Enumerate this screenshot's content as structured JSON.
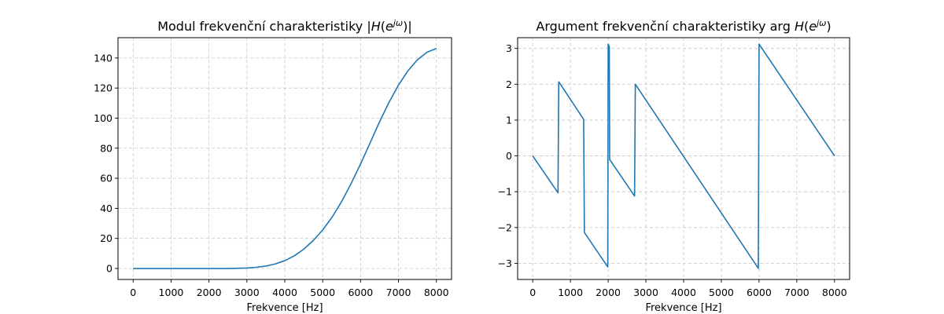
{
  "chart_data": [
    {
      "type": "line",
      "title": "Modul frekvenční charakteristiky |H(e^{jω})|",
      "title_parts": [
        "Modul frekvenční charakteristiky |",
        "H",
        "(",
        "e",
        "jω",
        ")|"
      ],
      "xlabel": "Frekvence [Hz]",
      "ylabel": "",
      "xlim": [
        -400,
        8400
      ],
      "ylim": [
        -7.3,
        153.5
      ],
      "xticks": [
        0,
        1000,
        2000,
        3000,
        4000,
        5000,
        6000,
        7000,
        8000
      ],
      "yticks": [
        0,
        20,
        40,
        60,
        80,
        100,
        120,
        140
      ],
      "grid": true,
      "color": "#1f77b4",
      "series": [
        {
          "x": [
            0,
            1000,
            2000,
            2500,
            3000,
            3250,
            3500,
            3750,
            4000,
            4250,
            4500,
            4750,
            5000,
            5250,
            5500,
            5750,
            6000,
            6250,
            6500,
            6750,
            7000,
            7250,
            7500,
            7750,
            8000
          ],
          "values": [
            0,
            0,
            0,
            0,
            0.3,
            0.8,
            1.6,
            3.0,
            5.2,
            8.4,
            12.8,
            18.6,
            25.6,
            34.2,
            44.5,
            56.5,
            69.5,
            83.5,
            97.5,
            110.5,
            122.0,
            131.5,
            138.8,
            143.8,
            146.3
          ]
        }
      ]
    },
    {
      "type": "line",
      "title": "Argument frekvenční charakteristiky arg H(e^{jω})",
      "title_parts": [
        "Argument frekvenční charakteristiky arg ",
        "H",
        "(",
        "e",
        "jω",
        ")"
      ],
      "xlabel": "Frekvence [Hz]",
      "ylabel": "",
      "xlim": [
        -400,
        8400
      ],
      "ylim": [
        -3.45,
        3.3
      ],
      "xticks": [
        0,
        1000,
        2000,
        3000,
        4000,
        5000,
        6000,
        7000,
        8000
      ],
      "yticks": [
        -3,
        -2,
        -1,
        0,
        1,
        2,
        3
      ],
      "grid": true,
      "color": "#1f77b4",
      "series": [
        {
          "x": [
            0,
            670,
            690,
            1350,
            1370,
            1990,
            2000,
            2030,
            2040,
            2700,
            2720,
            5980,
            6000,
            8000
          ],
          "values": [
            0,
            -1.03,
            2.07,
            1.02,
            -2.14,
            -3.1,
            3.12,
            3.05,
            -0.1,
            -1.12,
            2.0,
            -3.14,
            3.12,
            0
          ]
        }
      ]
    }
  ]
}
